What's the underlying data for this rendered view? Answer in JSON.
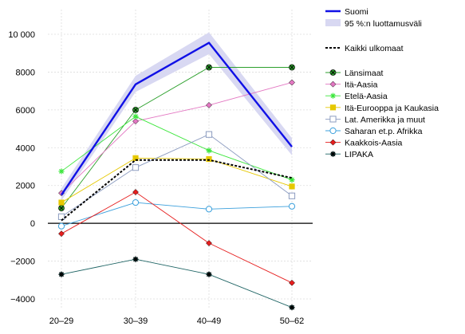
{
  "chart_data": {
    "type": "line",
    "title": "",
    "xlabel": "",
    "ylabel": "",
    "categories": [
      "20–29",
      "30–39",
      "40–49",
      "50–62"
    ],
    "ylim": [
      -4500,
      10600
    ],
    "yticks": [
      -4000,
      -2000,
      0,
      2000,
      4000,
      6000,
      8000,
      10000
    ],
    "ytick_labels": [
      "−4000",
      "−2000",
      "0",
      "2000",
      "4000",
      "6000",
      "8000",
      "10 000"
    ],
    "grid": true,
    "zero_line": true,
    "legend_position": "right",
    "suomi": {
      "name": "Suomi",
      "color": "#1010e6",
      "values": [
        1500,
        7350,
        9550,
        4050
      ]
    },
    "ci_band": {
      "name": "95 %:n luottamusväli",
      "color": "#d8d8f2",
      "lower": [
        1200,
        6950,
        8950,
        3600
      ],
      "upper": [
        1850,
        7800,
        10100,
        4500
      ]
    },
    "all_foreign": {
      "name": "Kaikki ulkomaat",
      "color": "#000000",
      "values": [
        150,
        3350,
        3350,
        2400
      ]
    },
    "series": [
      {
        "name": "Länsimaat",
        "color": "#2ca02c",
        "marker": "circle-x",
        "values": [
          800,
          6000,
          8250,
          8250
        ]
      },
      {
        "name": "Itä-Aasia",
        "color": "#e377c2",
        "marker": "diamond",
        "values": [
          1600,
          5400,
          6250,
          7450
        ]
      },
      {
        "name": "Etelä-Aasia",
        "color": "#3ce63c",
        "marker": "star",
        "values": [
          2750,
          5650,
          3850,
          2300
        ]
      },
      {
        "name": "Itä-Eurooppa ja Kaukasia",
        "color": "#e6c800",
        "marker": "square-filled",
        "values": [
          1100,
          3450,
          3400,
          1950
        ]
      },
      {
        "name": "Lat.  Amerikka ja muut",
        "color": "#8c9cc0",
        "marker": "square",
        "values": [
          350,
          2950,
          4700,
          1450
        ]
      },
      {
        "name": "Saharan et.p.  Afrikka",
        "color": "#3ca0dc",
        "marker": "circle",
        "values": [
          -150,
          1100,
          750,
          900
        ]
      },
      {
        "name": "Kaakkois-Aasia",
        "color": "#e61e1e",
        "marker": "diamond",
        "values": [
          -550,
          1650,
          -1050,
          -3150
        ]
      },
      {
        "name": "LIPAKA",
        "color": "#1e6464",
        "marker": "star-filled",
        "values": [
          -2700,
          -1900,
          -2700,
          -4450
        ]
      }
    ]
  }
}
